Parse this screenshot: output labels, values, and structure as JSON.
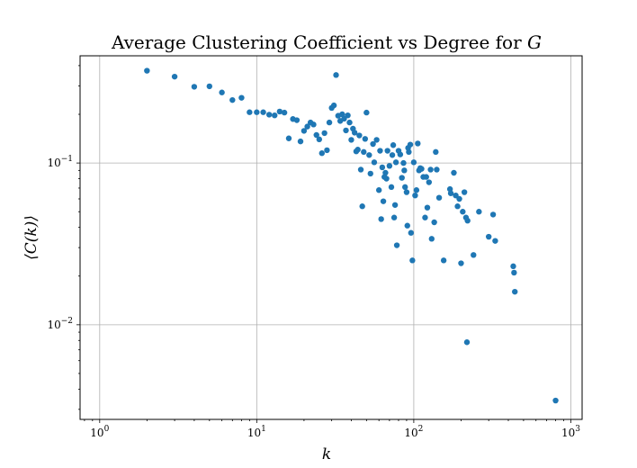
{
  "chart_data": {
    "type": "scatter",
    "title": "Average Clustering Coefficient vs Degree for G",
    "title_parts": [
      "Average Clustering Coefficient vs Degree for ",
      "G"
    ],
    "xlabel": "k",
    "ylabel": "⟨C(k)⟩",
    "x_scale": "log",
    "y_scale": "log",
    "xlim": [
      0.75,
      1180
    ],
    "ylim": [
      0.0026,
      0.46
    ],
    "grid": true,
    "x_ticks": [
      {
        "base": "10",
        "exp": "0",
        "value": 1
      },
      {
        "base": "10",
        "exp": "1",
        "value": 10
      },
      {
        "base": "10",
        "exp": "2",
        "value": 100
      },
      {
        "base": "10",
        "exp": "3",
        "value": 1000
      }
    ],
    "y_ticks": [
      {
        "base": "10",
        "exp": "−2",
        "value": 0.01
      },
      {
        "base": "10",
        "exp": "−1",
        "value": 0.1
      }
    ],
    "marker_color": "#1f77b4",
    "points": [
      [
        2,
        0.372
      ],
      [
        3,
        0.342
      ],
      [
        4,
        0.296
      ],
      [
        5,
        0.298
      ],
      [
        6,
        0.273
      ],
      [
        7,
        0.245
      ],
      [
        8,
        0.253
      ],
      [
        9,
        0.206
      ],
      [
        10,
        0.206
      ],
      [
        11,
        0.206
      ],
      [
        12,
        0.199
      ],
      [
        13,
        0.197
      ],
      [
        14,
        0.208
      ],
      [
        15,
        0.205
      ],
      [
        16,
        0.142
      ],
      [
        17,
        0.187
      ],
      [
        18,
        0.184
      ],
      [
        19,
        0.136
      ],
      [
        20,
        0.158
      ],
      [
        21,
        0.168
      ],
      [
        22,
        0.178
      ],
      [
        23,
        0.173
      ],
      [
        24,
        0.149
      ],
      [
        25,
        0.14
      ],
      [
        26,
        0.115
      ],
      [
        27,
        0.153
      ],
      [
        28,
        0.12
      ],
      [
        29,
        0.178
      ],
      [
        30,
        0.219
      ],
      [
        31,
        0.227
      ],
      [
        32,
        0.35
      ],
      [
        33,
        0.196
      ],
      [
        34,
        0.182
      ],
      [
        35,
        0.2
      ],
      [
        36,
        0.188
      ],
      [
        37,
        0.159
      ],
      [
        38,
        0.197
      ],
      [
        39,
        0.178
      ],
      [
        40,
        0.139
      ],
      [
        41,
        0.163
      ],
      [
        42,
        0.154
      ],
      [
        43,
        0.118
      ],
      [
        44,
        0.121
      ],
      [
        45,
        0.148
      ],
      [
        46,
        0.091
      ],
      [
        47,
        0.054
      ],
      [
        48,
        0.117
      ],
      [
        49,
        0.141
      ],
      [
        50,
        0.205
      ],
      [
        52,
        0.112
      ],
      [
        53,
        0.086
      ],
      [
        55,
        0.131
      ],
      [
        56,
        0.101
      ],
      [
        58,
        0.139
      ],
      [
        60,
        0.068
      ],
      [
        61,
        0.119
      ],
      [
        62,
        0.045
      ],
      [
        63,
        0.094
      ],
      [
        64,
        0.058
      ],
      [
        65,
        0.082
      ],
      [
        66,
        0.087
      ],
      [
        67,
        0.08
      ],
      [
        68,
        0.119
      ],
      [
        70,
        0.096
      ],
      [
        72,
        0.071
      ],
      [
        73,
        0.112
      ],
      [
        74,
        0.129
      ],
      [
        75,
        0.046
      ],
      [
        76,
        0.055
      ],
      [
        77,
        0.101
      ],
      [
        78,
        0.031
      ],
      [
        80,
        0.119
      ],
      [
        82,
        0.113
      ],
      [
        84,
        0.081
      ],
      [
        86,
        0.1
      ],
      [
        87,
        0.09
      ],
      [
        88,
        0.071
      ],
      [
        90,
        0.066
      ],
      [
        91,
        0.041
      ],
      [
        92,
        0.124
      ],
      [
        93,
        0.117
      ],
      [
        95,
        0.13
      ],
      [
        96,
        0.037
      ],
      [
        98,
        0.025
      ],
      [
        100,
        0.101
      ],
      [
        102,
        0.063
      ],
      [
        104,
        0.068
      ],
      [
        106,
        0.132
      ],
      [
        108,
        0.09
      ],
      [
        110,
        0.093
      ],
      [
        112,
        0.092
      ],
      [
        115,
        0.082
      ],
      [
        118,
        0.046
      ],
      [
        120,
        0.082
      ],
      [
        122,
        0.053
      ],
      [
        125,
        0.076
      ],
      [
        128,
        0.091
      ],
      [
        130,
        0.034
      ],
      [
        135,
        0.043
      ],
      [
        138,
        0.117
      ],
      [
        140,
        0.091
      ],
      [
        145,
        0.061
      ],
      [
        155,
        0.025
      ],
      [
        170,
        0.069
      ],
      [
        172,
        0.065
      ],
      [
        180,
        0.087
      ],
      [
        185,
        0.063
      ],
      [
        190,
        0.054
      ],
      [
        195,
        0.06
      ],
      [
        200,
        0.024
      ],
      [
        205,
        0.05
      ],
      [
        210,
        0.066
      ],
      [
        215,
        0.046
      ],
      [
        218,
        0.0078
      ],
      [
        220,
        0.044
      ],
      [
        240,
        0.027
      ],
      [
        260,
        0.05
      ],
      [
        300,
        0.035
      ],
      [
        320,
        0.048
      ],
      [
        330,
        0.033
      ],
      [
        430,
        0.023
      ],
      [
        435,
        0.021
      ],
      [
        440,
        0.016
      ],
      [
        800,
        0.0034
      ]
    ]
  }
}
